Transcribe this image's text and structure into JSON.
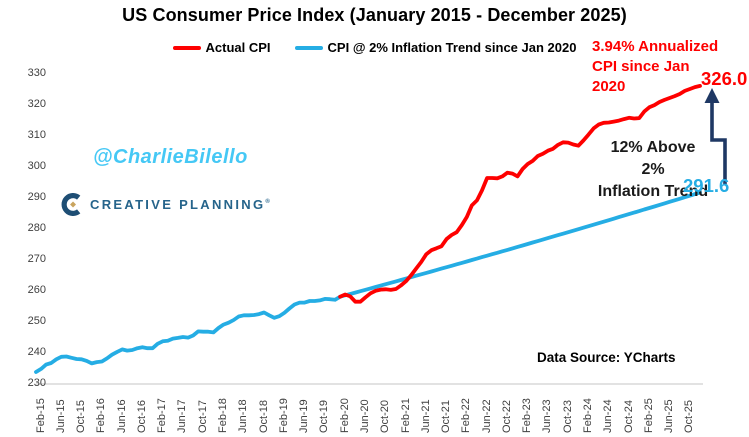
{
  "title": "US Consumer Price Index (January 2015 -  December 2025)",
  "legend": {
    "actual_label": "Actual CPI",
    "trend_label": "CPI @ 2% Inflation Trend since Jan 2020"
  },
  "annotations": {
    "annualized_line1": "3.94% Annualized",
    "annualized_line2": "CPI since Jan 2020",
    "above_trend_line1": "12% Above 2%",
    "above_trend_line2": "Inflation Trend",
    "actual_end_label": "326.0",
    "trend_end_label": "291.6"
  },
  "watermark": "@CharlieBilello",
  "logo_text": "CREATIVE PLANNING",
  "logo_mark": "®",
  "data_source": "Data Source: YCharts",
  "colors": {
    "actual": "#fe0000",
    "trend": "#25ade4",
    "arrow": "#1f3864",
    "watermark": "#45c8f5",
    "logo_text": "#26648b",
    "logo_navy": "#1e4e74",
    "logo_gold": "#c9a45f",
    "axis_text": "#404040",
    "axis_line": "#d9d9d9"
  },
  "chart_data": {
    "type": "line",
    "title": "US Consumer Price Index (January 2015 -  December 2025)",
    "x_start_month": "Jan-2015",
    "x_end_month": "Dec-2025",
    "x_months_count": 132,
    "ylim": [
      230,
      330
    ],
    "y_tick_step": 10,
    "grid": false,
    "legend_position": "top",
    "x_tick_first_month_index": 1,
    "x_tick_month_step": 4,
    "x_tick_labels": [
      "Feb-15",
      "Jun-15",
      "Oct-15",
      "Feb-16",
      "Jun-16",
      "Oct-16",
      "Feb-17",
      "Jun-17",
      "Oct-17",
      "Feb-18",
      "Jun-18",
      "Oct-18",
      "Feb-19",
      "Jun-19",
      "Oct-19",
      "Feb-20",
      "Jun-20",
      "Oct-20",
      "Feb-21",
      "Jun-21",
      "Oct-21",
      "Feb-22",
      "Jun-22",
      "Oct-22",
      "Feb-23",
      "Jun-23",
      "Oct-23",
      "Feb-24",
      "Jun-24",
      "Oct-24",
      "Feb-25",
      "Jun-25",
      "Oct-25"
    ],
    "actual_cpi": [
      233.7,
      234.7,
      236.1,
      236.6,
      237.8,
      238.6,
      238.7,
      238.3,
      237.9,
      237.8,
      237.3,
      236.5,
      236.9,
      237.1,
      238.1,
      239.3,
      240.2,
      241.0,
      240.6,
      240.8,
      241.4,
      241.7,
      241.4,
      241.4,
      242.8,
      243.6,
      243.8,
      244.5,
      244.7,
      245.0,
      244.8,
      245.5,
      246.8,
      246.7,
      246.7,
      246.5,
      247.9,
      249.0,
      249.6,
      250.5,
      251.6,
      252.0,
      252.0,
      252.1,
      252.4,
      252.9,
      252.0,
      251.2,
      251.7,
      252.8,
      254.2,
      255.5,
      256.1,
      256.1,
      256.6,
      256.6,
      256.8,
      257.3,
      257.2,
      257.0,
      258.0,
      258.7,
      258.1,
      256.4,
      256.4,
      257.8,
      259.1,
      259.9,
      260.3,
      260.4,
      260.2,
      260.5,
      261.6,
      263.0,
      264.9,
      267.1,
      269.2,
      271.7,
      273.0,
      273.6,
      274.3,
      276.6,
      277.9,
      278.8,
      281.1,
      283.7,
      287.5,
      289.1,
      292.3,
      296.3,
      296.3,
      296.2,
      296.8,
      298.0,
      297.7,
      296.8,
      299.2,
      300.8,
      301.8,
      303.4,
      304.1,
      305.1,
      305.7,
      307.0,
      307.8,
      307.7,
      307.1,
      306.7,
      308.4,
      310.3,
      312.3,
      313.5,
      314.1,
      314.2,
      314.5,
      314.8,
      315.3,
      315.7,
      315.5,
      315.6,
      317.7,
      319.1,
      319.8,
      320.8,
      321.5,
      322.1,
      322.7,
      323.4,
      324.4,
      325.0,
      325.6,
      326.0
    ],
    "series": [
      {
        "name": "Actual CPI",
        "color_key": "actual",
        "source": "actual_cpi",
        "start_index": 60,
        "end_index": 131
      },
      {
        "name": "CPI Jan 2015 - Jan 2020 (drawn in blue)",
        "color_key": "trend",
        "source": "actual_cpi",
        "start_index": 0,
        "end_index": 60
      },
      {
        "name": "CPI @ 2% Inflation Trend since Jan 2020",
        "color_key": "trend",
        "trend": {
          "start_index": 60,
          "end_index": 131,
          "start_value": 258.0,
          "end_value": 291.6,
          "rate_label": "2%"
        }
      }
    ],
    "end_values": {
      "actual": 326.0,
      "trend": 291.6
    }
  }
}
